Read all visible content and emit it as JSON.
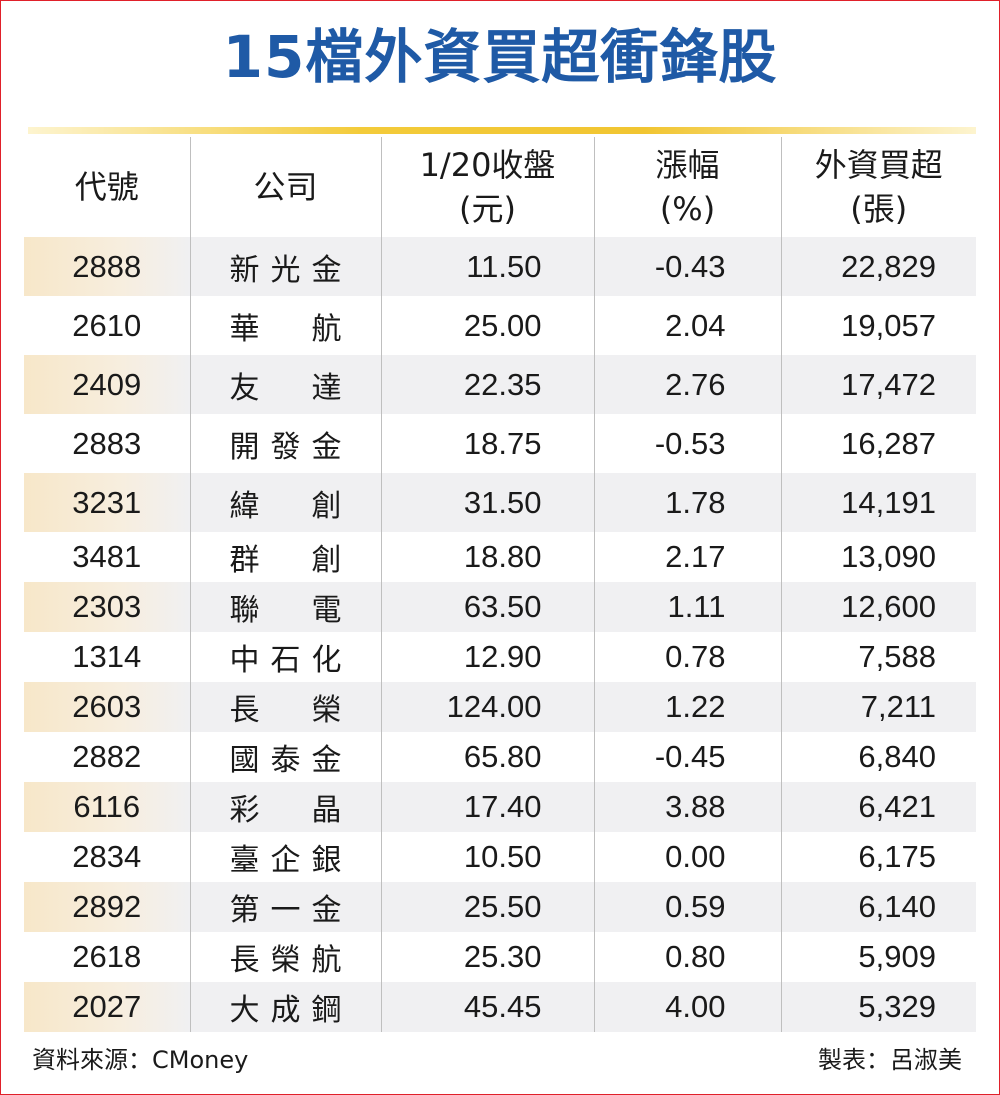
{
  "title": "15檔外資買超衝鋒股",
  "colors": {
    "title": "#1f5aa6",
    "rule": "#f1c531",
    "row_shade": "#f0f0f2",
    "code_shade": "#f7e7c9",
    "frame": "#e0202a"
  },
  "headers": [
    {
      "line1": "代號",
      "line2": ""
    },
    {
      "line1": "公司",
      "line2": ""
    },
    {
      "line1": "1/20收盤",
      "line2": "(元)"
    },
    {
      "line1": "漲幅",
      "line2": "(%)"
    },
    {
      "line1": "外資買超",
      "line2": "(張)"
    }
  ],
  "rows": [
    {
      "code": "2888",
      "name": "新光金",
      "close": "11.50",
      "change": "-0.43",
      "net_buy": "22,829"
    },
    {
      "code": "2610",
      "name": "華航",
      "close": "25.00",
      "change": "2.04",
      "net_buy": "19,057"
    },
    {
      "code": "2409",
      "name": "友達",
      "close": "22.35",
      "change": "2.76",
      "net_buy": "17,472"
    },
    {
      "code": "2883",
      "name": "開發金",
      "close": "18.75",
      "change": "-0.53",
      "net_buy": "16,287"
    },
    {
      "code": "3231",
      "name": "緯創",
      "close": "31.50",
      "change": "1.78",
      "net_buy": "14,191"
    },
    {
      "code": "3481",
      "name": "群創",
      "close": "18.80",
      "change": "2.17",
      "net_buy": "13,090"
    },
    {
      "code": "2303",
      "name": "聯電",
      "close": "63.50",
      "change": "1.11",
      "net_buy": "12,600"
    },
    {
      "code": "1314",
      "name": "中石化",
      "close": "12.90",
      "change": "0.78",
      "net_buy": "7,588"
    },
    {
      "code": "2603",
      "name": "長榮",
      "close": "124.00",
      "change": "1.22",
      "net_buy": "7,211"
    },
    {
      "code": "2882",
      "name": "國泰金",
      "close": "65.80",
      "change": "-0.45",
      "net_buy": "6,840"
    },
    {
      "code": "6116",
      "name": "彩晶",
      "close": "17.40",
      "change": "3.88",
      "net_buy": "6,421"
    },
    {
      "code": "2834",
      "name": "臺企銀",
      "close": "10.50",
      "change": "0.00",
      "net_buy": "6,175"
    },
    {
      "code": "2892",
      "name": "第一金",
      "close": "25.50",
      "change": "0.59",
      "net_buy": "6,140"
    },
    {
      "code": "2618",
      "name": "長榮航",
      "close": "25.30",
      "change": "0.80",
      "net_buy": "5,909"
    },
    {
      "code": "2027",
      "name": "大成鋼",
      "close": "45.45",
      "change": "4.00",
      "net_buy": "5,329"
    }
  ],
  "footer": {
    "source": "資料來源：CMoney",
    "credit": "製表：呂淑美"
  },
  "chart_data": {
    "type": "table",
    "title": "15檔外資買超衝鋒股",
    "columns": [
      "代號",
      "公司",
      "1/20收盤(元)",
      "漲幅(%)",
      "外資買超(張)"
    ],
    "rows": [
      [
        "2888",
        "新光金",
        11.5,
        -0.43,
        22829
      ],
      [
        "2610",
        "華航",
        25.0,
        2.04,
        19057
      ],
      [
        "2409",
        "友達",
        22.35,
        2.76,
        17472
      ],
      [
        "2883",
        "開發金",
        18.75,
        -0.53,
        16287
      ],
      [
        "3231",
        "緯創",
        31.5,
        1.78,
        14191
      ],
      [
        "3481",
        "群創",
        18.8,
        2.17,
        13090
      ],
      [
        "2303",
        "聯電",
        63.5,
        1.11,
        12600
      ],
      [
        "1314",
        "中石化",
        12.9,
        0.78,
        7588
      ],
      [
        "2603",
        "長榮",
        124.0,
        1.22,
        7211
      ],
      [
        "2882",
        "國泰金",
        65.8,
        -0.45,
        6840
      ],
      [
        "6116",
        "彩晶",
        17.4,
        3.88,
        6421
      ],
      [
        "2834",
        "臺企銀",
        10.5,
        0.0,
        6175
      ],
      [
        "2892",
        "第一金",
        25.5,
        0.59,
        6140
      ],
      [
        "2618",
        "長榮航",
        25.3,
        0.8,
        5909
      ],
      [
        "2027",
        "大成鋼",
        45.45,
        4.0,
        5329
      ]
    ],
    "source": "資料來源：CMoney",
    "credit": "製表：呂淑美"
  }
}
